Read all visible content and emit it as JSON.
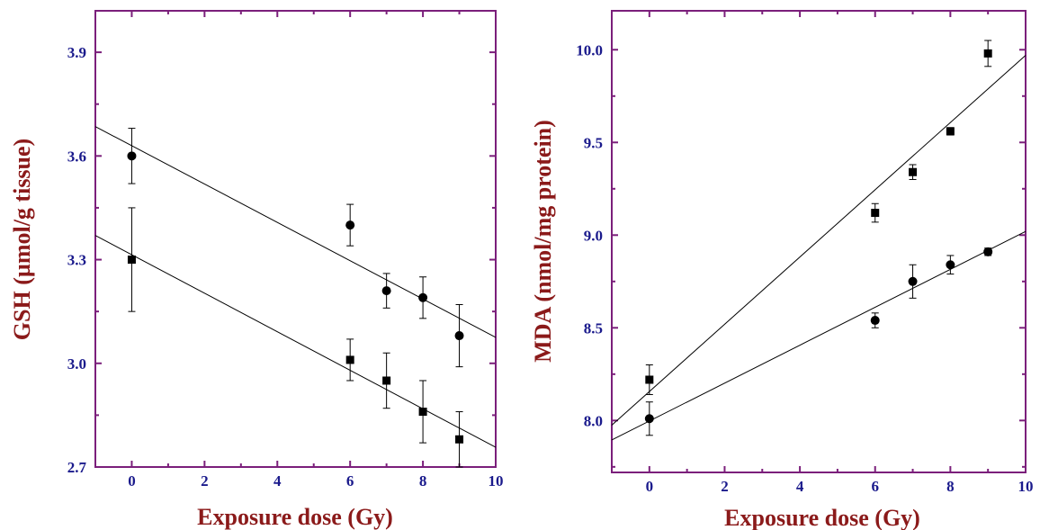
{
  "colors": {
    "frame": "#7b1f7b",
    "tick_text": "#1a1a8c",
    "axis_title": "#8b1a1a",
    "marks": "#000000"
  },
  "chart_data": [
    {
      "type": "scatter",
      "xlabel": "Exposure dose (Gy)",
      "ylabel": "GSH (µmol/g tissue)",
      "xlim": [
        -1,
        10
      ],
      "ylim": [
        2.7,
        4.02
      ],
      "xticks": [
        "0",
        "2",
        "4",
        "6",
        "8",
        "10"
      ],
      "yticks": [
        "2.7",
        "3.0",
        "3.3",
        "3.6",
        "3.9"
      ],
      "series": [
        {
          "marker": "circle",
          "x": [
            0,
            6,
            7,
            8,
            9
          ],
          "y": [
            3.6,
            3.4,
            3.21,
            3.19,
            3.08
          ],
          "err": [
            0.08,
            0.06,
            0.05,
            0.06,
            0.09
          ],
          "fit": {
            "x0": -1,
            "y0": 3.685,
            "x1": 10,
            "y1": 3.075
          }
        },
        {
          "marker": "square",
          "x": [
            0,
            6,
            7,
            8,
            9
          ],
          "y": [
            3.3,
            3.01,
            2.95,
            2.86,
            2.78
          ],
          "err": [
            0.15,
            0.06,
            0.08,
            0.09,
            0.08
          ],
          "fit": {
            "x0": -1,
            "y0": 3.37,
            "x1": 10,
            "y1": 2.757
          }
        }
      ]
    },
    {
      "type": "scatter",
      "xlabel": "Exposure dose (Gy)",
      "ylabel": "MDA (nmol/mg protein)",
      "xlim": [
        -1,
        10
      ],
      "ylim": [
        7.72,
        10.21
      ],
      "xticks": [
        "0",
        "2",
        "4",
        "6",
        "8",
        "10"
      ],
      "yticks": [
        "8.0",
        "8.5",
        "9.0",
        "9.5",
        "10.0"
      ],
      "series": [
        {
          "marker": "square",
          "x": [
            0,
            6,
            7,
            8,
            9
          ],
          "y": [
            8.22,
            9.12,
            9.34,
            9.56,
            9.98
          ],
          "err": [
            0.08,
            0.05,
            0.04,
            0.02,
            0.07
          ],
          "fit": {
            "x0": -1,
            "y0": 7.975,
            "x1": 10,
            "y1": 9.97
          }
        },
        {
          "marker": "circle",
          "x": [
            0,
            6,
            7,
            8,
            9
          ],
          "y": [
            8.01,
            8.54,
            8.75,
            8.84,
            8.91
          ],
          "err": [
            0.09,
            0.04,
            0.09,
            0.05,
            0.02
          ],
          "fit": {
            "x0": -1,
            "y0": 7.895,
            "x1": 10,
            "y1": 9.02
          }
        }
      ]
    }
  ]
}
